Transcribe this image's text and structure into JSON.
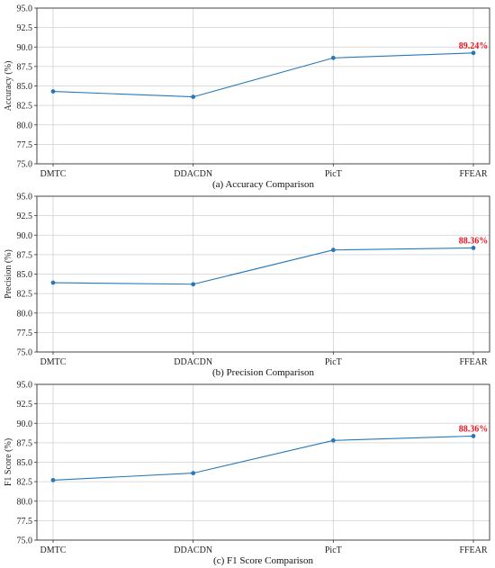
{
  "colors": {
    "line": "#2878b5",
    "highlight": "#e8141e",
    "grid": "#d0d0d0"
  },
  "chart_data": [
    {
      "type": "line",
      "categories": [
        "DMTC",
        "DDACDN",
        "PicT",
        "FFEAR"
      ],
      "series": [
        {
          "values": [
            84.3,
            83.6,
            88.6,
            89.24
          ]
        }
      ],
      "ylabel": "Accuracy (%)",
      "xlabel": "",
      "caption": "(a) Accuracy Comparison",
      "ylim": [
        75.0,
        95.0
      ],
      "yticks": [
        "75.0",
        "77.5",
        "80.0",
        "82.5",
        "85.0",
        "87.5",
        "90.0",
        "92.5",
        "95.0"
      ],
      "grid": true,
      "annotation": {
        "category": "FFEAR",
        "text": "89.24%"
      }
    },
    {
      "type": "line",
      "categories": [
        "DMTC",
        "DDACDN",
        "PicT",
        "FFEAR"
      ],
      "series": [
        {
          "values": [
            83.9,
            83.7,
            88.1,
            88.36
          ]
        }
      ],
      "ylabel": "Precision (%)",
      "xlabel": "",
      "caption": "(b) Precision Comparison",
      "ylim": [
        75.0,
        95.0
      ],
      "yticks": [
        "75.0",
        "77.5",
        "80.0",
        "82.5",
        "85.0",
        "87.5",
        "90.0",
        "92.5",
        "95.0"
      ],
      "grid": true,
      "annotation": {
        "category": "FFEAR",
        "text": "88.36%"
      }
    },
    {
      "type": "line",
      "categories": [
        "DMTC",
        "DDACDN",
        "PicT",
        "FFEAR"
      ],
      "series": [
        {
          "values": [
            82.7,
            83.6,
            87.8,
            88.36
          ]
        }
      ],
      "ylabel": "F1 Score (%)",
      "xlabel": "",
      "caption": "(c) F1 Score Comparison",
      "ylim": [
        75.0,
        95.0
      ],
      "yticks": [
        "75.0",
        "77.5",
        "80.0",
        "82.5",
        "85.0",
        "87.5",
        "90.0",
        "92.5",
        "95.0"
      ],
      "grid": true,
      "annotation": {
        "category": "FFEAR",
        "text": "88.36%"
      }
    }
  ]
}
